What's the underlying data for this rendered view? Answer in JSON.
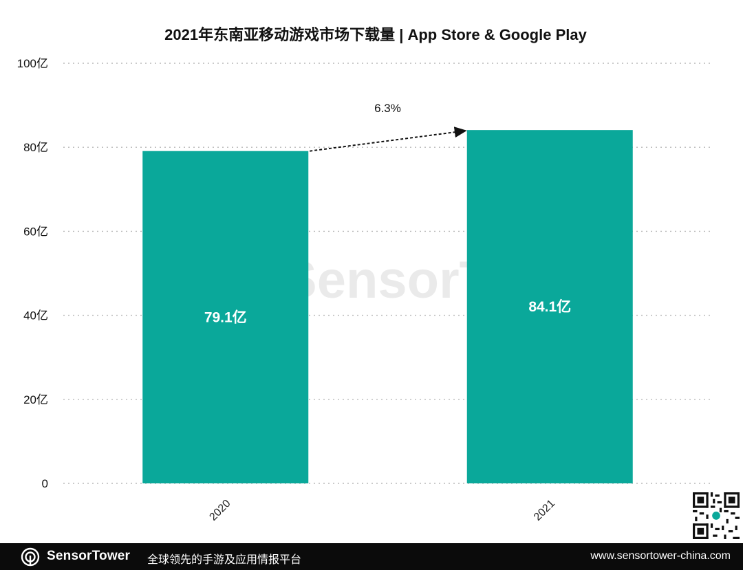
{
  "chart_data": {
    "type": "bar",
    "title": "2021年东南亚移动游戏市场下载量 | App Store & Google Play",
    "categories": [
      "2020",
      "2021"
    ],
    "values": [
      79.1,
      84.1
    ],
    "data_labels": [
      "79.1亿",
      "84.1亿"
    ],
    "unit": "亿",
    "ylim": [
      0,
      100
    ],
    "yticks": [
      {
        "value": 0,
        "label": "0"
      },
      {
        "value": 20,
        "label": "20亿"
      },
      {
        "value": 40,
        "label": "40亿"
      },
      {
        "value": 60,
        "label": "60亿"
      },
      {
        "value": 80,
        "label": "80亿"
      },
      {
        "value": 100,
        "label": "100亿"
      }
    ],
    "annotation": "6.3%",
    "grid": true,
    "bar_color": "#0aa89a"
  },
  "watermark": "SensorTower",
  "footer": {
    "brand": "SensorTower",
    "tagline": "全球领先的手游及应用情报平台",
    "url": "www.sensortower-china.com"
  }
}
